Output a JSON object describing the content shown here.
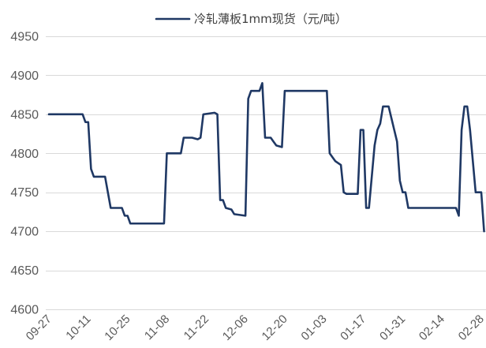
{
  "chart_data": {
    "type": "line",
    "title": "",
    "xlabel": "",
    "ylabel": "",
    "ylim": [
      4600,
      4950
    ],
    "y_ticks": [
      4600,
      4650,
      4700,
      4750,
      4800,
      4850,
      4900,
      4950
    ],
    "x_ticks": [
      "09-27",
      "10-11",
      "10-25",
      "11-08",
      "11-22",
      "12-06",
      "12-20",
      "01-03",
      "01-17",
      "01-31",
      "02-14",
      "02-28"
    ],
    "grid": "horizontal",
    "legend": {
      "placement": "top"
    },
    "series": [
      {
        "name": "冷轧薄板1mm现货（元/吨）",
        "color": "#1f3864",
        "x": [
          "09-27",
          "10-09",
          "10-10",
          "10-11",
          "10-12",
          "10-13",
          "10-17",
          "10-18",
          "10-19",
          "10-23",
          "10-24",
          "10-25",
          "10-26",
          "11-07",
          "11-08",
          "11-13",
          "11-14",
          "11-17",
          "11-19",
          "11-20",
          "11-21",
          "11-25",
          "11-26",
          "11-27",
          "11-28",
          "11-29",
          "12-01",
          "12-02",
          "12-06",
          "12-07",
          "12-08",
          "12-11",
          "12-12",
          "12-13",
          "12-15",
          "12-16",
          "12-17",
          "12-19",
          "12-20",
          "01-04",
          "01-05",
          "01-06",
          "01-07",
          "01-09",
          "01-10",
          "01-11",
          "01-15",
          "01-16",
          "01-17",
          "01-18",
          "01-19",
          "01-20",
          "01-21",
          "01-22",
          "01-23",
          "01-24",
          "01-26",
          "01-27",
          "01-28",
          "01-29",
          "01-30",
          "01-31",
          "02-01",
          "02-02",
          "02-19",
          "02-20",
          "02-21",
          "02-22",
          "02-23",
          "02-24",
          "02-25",
          "02-26",
          "02-28",
          "03-01"
        ],
        "y": [
          4850,
          4850,
          4840,
          4840,
          4780,
          4770,
          4770,
          4750,
          4730,
          4730,
          4720,
          4720,
          4710,
          4710,
          4800,
          4800,
          4820,
          4820,
          4818,
          4820,
          4850,
          4852,
          4850,
          4740,
          4740,
          4730,
          4728,
          4722,
          4720,
          4870,
          4880,
          4880,
          4890,
          4820,
          4820,
          4815,
          4810,
          4808,
          4880,
          4880,
          4800,
          4795,
          4790,
          4785,
          4750,
          4748,
          4748,
          4830,
          4830,
          4730,
          4730,
          4770,
          4810,
          4830,
          4838,
          4860,
          4860,
          4845,
          4830,
          4815,
          4765,
          4750,
          4750,
          4730,
          4730,
          4720,
          4830,
          4860,
          4860,
          4830,
          4790,
          4750,
          4750,
          4700
        ]
      }
    ]
  }
}
